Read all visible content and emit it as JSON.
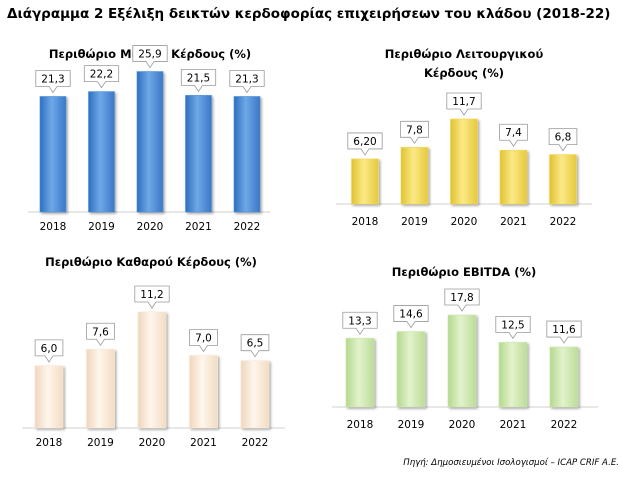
{
  "main_title": "Διάγραμμα 2 Εξέλιξη δεικτών κερδοφορίας επιχειρήσεων του κλάδου (2018-22)",
  "source": "Πηγή: Δημοσιευμένοι Ισολογισμοί – ICAP CRIF A.E.",
  "colors": {
    "blue": "#4d8fd8",
    "yellow": "#f2d95a",
    "beige": "#fae9d6",
    "green": "#cde8ad"
  },
  "chart_data": [
    {
      "id": "gross",
      "type": "bar",
      "title_lines": [
        "Περιθώριο Μικτού Κέρδους (%)"
      ],
      "categories": [
        "2018",
        "2019",
        "2020",
        "2021",
        "2022"
      ],
      "values": [
        21.3,
        22.2,
        25.9,
        21.5,
        21.3
      ],
      "labels": [
        "21,3",
        "22,2",
        "25,9",
        "21,5",
        "21,3"
      ],
      "ylim": [
        0,
        26
      ],
      "color": "blue"
    },
    {
      "id": "operating",
      "type": "bar",
      "title_lines": [
        "Περιθώριο Λειτουργικού",
        "Κέρδους (%)"
      ],
      "categories": [
        "2018",
        "2019",
        "2020",
        "2021",
        "2022"
      ],
      "values": [
        6.2,
        7.8,
        11.7,
        7.4,
        6.8
      ],
      "labels": [
        "6,20",
        "7,8",
        "11,7",
        "7,4",
        "6,8"
      ],
      "ylim": [
        0,
        11.7
      ],
      "color": "yellow"
    },
    {
      "id": "net",
      "type": "bar",
      "title_lines": [
        "Περιθώριο Καθαρού Κέρδους (%)"
      ],
      "categories": [
        "2018",
        "2019",
        "2020",
        "2021",
        "2022"
      ],
      "values": [
        6.0,
        7.6,
        11.2,
        7.0,
        6.5
      ],
      "labels": [
        "6,0",
        "7,6",
        "11,2",
        "7,0",
        "6,5"
      ],
      "ylim": [
        0,
        11.2
      ],
      "color": "beige"
    },
    {
      "id": "ebitda",
      "type": "bar",
      "title_lines": [
        "Περιθώριο EBITDA (%)"
      ],
      "categories": [
        "2018",
        "2019",
        "2020",
        "2021",
        "2022"
      ],
      "values": [
        13.3,
        14.6,
        17.8,
        12.5,
        11.6
      ],
      "labels": [
        "13,3",
        "14,6",
        "17,8",
        "12,5",
        "11,6"
      ],
      "ylim": [
        0,
        17.8
      ],
      "color": "green"
    }
  ]
}
